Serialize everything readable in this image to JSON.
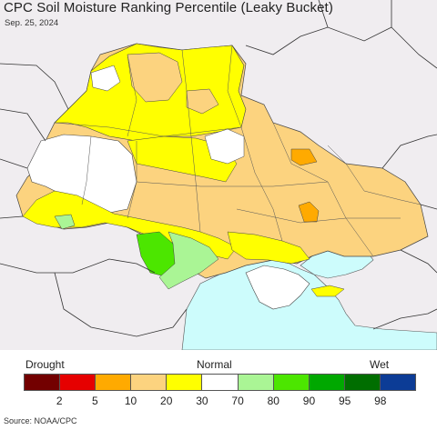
{
  "title": "CPC Soil Moisture Ranking Percentile (Leaky Bucket)",
  "date": "Sep. 25, 2024",
  "legend": {
    "left_label": "Drought",
    "center_label": "Normal",
    "right_label": "Wet",
    "colors": [
      "#730000",
      "#e60000",
      "#ffaa00",
      "#fcd37f",
      "#ffff00",
      "#ffffff",
      "#aaf595",
      "#4ce600",
      "#00a800",
      "#006e00",
      "#0c3c96"
    ],
    "ticks": [
      "2",
      "5",
      "10",
      "20",
      "30",
      "70",
      "80",
      "90",
      "95",
      "98"
    ]
  },
  "source": "Source: NOAA/CPC",
  "map_colors": {
    "background_land": "#f0edf0",
    "sea": "#cdfcfc",
    "border": "#333333",
    "yellow": "#ffff00",
    "tan": "#fcd37f",
    "orange": "#ffaa00",
    "light_green": "#aaf595",
    "green": "#4ce600",
    "white": "#ffffff"
  }
}
